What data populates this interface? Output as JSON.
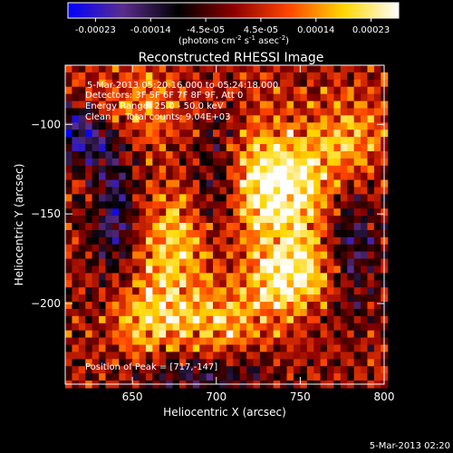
{
  "chart_data": {
    "type": "heatmap",
    "title": "Reconstructed RHESSI Image",
    "xlabel": "Heliocentric X (arcsec)",
    "ylabel": "Heliocentric Y (arcsec)",
    "xlim": [
      610,
      800
    ],
    "ylim": [
      -245,
      -67
    ],
    "x_ticks": [
      650,
      700,
      750,
      800
    ],
    "y_ticks": [
      -100,
      -150,
      -200
    ],
    "colorbar": {
      "ticks": [
        "-0.00023",
        "-0.00014",
        "-4.5e-05",
        "4.5e-05",
        "0.00014",
        "0.00023"
      ],
      "unit_label_parts": [
        "(photons cm",
        "-2",
        " s",
        "-1",
        " asec",
        "-2",
        ")"
      ],
      "colormap": [
        "#0000ff",
        "#5a2d8c",
        "#000000",
        "#8b0000",
        "#ff4500",
        "#ffd700",
        "#ffffff"
      ]
    },
    "info_lines": [
      "5-Mar-2013 05:20:16.000 to 05:24:18.000",
      "Detectors: 3F 5F 6F 7F 8F 9F, Att 0",
      "Energy Range: 25.0 - 50.0 keV",
      "Clean     Total counts: 9.04E+03"
    ],
    "peak_label": "Position of Peak = [717,-147]",
    "peak_position": [
      717,
      -147
    ],
    "timestamp": "5-Mar-2013 02:20",
    "features": [
      {
        "x": 737,
        "y": -135,
        "sx": 22,
        "sy": 24,
        "amp": 1.0
      },
      {
        "x": 745,
        "y": -185,
        "sx": 18,
        "sy": 14,
        "amp": 0.85
      },
      {
        "x": 675,
        "y": -170,
        "sx": 18,
        "sy": 22,
        "amp": 0.65
      },
      {
        "x": 700,
        "y": -210,
        "sx": 22,
        "sy": 12,
        "amp": 0.55
      },
      {
        "x": 655,
        "y": -210,
        "sx": 14,
        "sy": 14,
        "amp": 0.55
      },
      {
        "x": 650,
        "y": -90,
        "sx": 22,
        "sy": 16,
        "amp": 0.45
      },
      {
        "x": 780,
        "y": -110,
        "sx": 14,
        "sy": 18,
        "amp": 0.55
      },
      {
        "x": 640,
        "y": -150,
        "sx": 10,
        "sy": 30,
        "amp": -0.6
      },
      {
        "x": 700,
        "y": -135,
        "sx": 10,
        "sy": 28,
        "amp": -0.55
      },
      {
        "x": 780,
        "y": -165,
        "sx": 12,
        "sy": 30,
        "amp": -0.55
      },
      {
        "x": 620,
        "y": -105,
        "sx": 12,
        "sy": 12,
        "amp": -0.85
      },
      {
        "x": 690,
        "y": -240,
        "sx": 30,
        "sy": 8,
        "amp": -0.45
      }
    ]
  }
}
